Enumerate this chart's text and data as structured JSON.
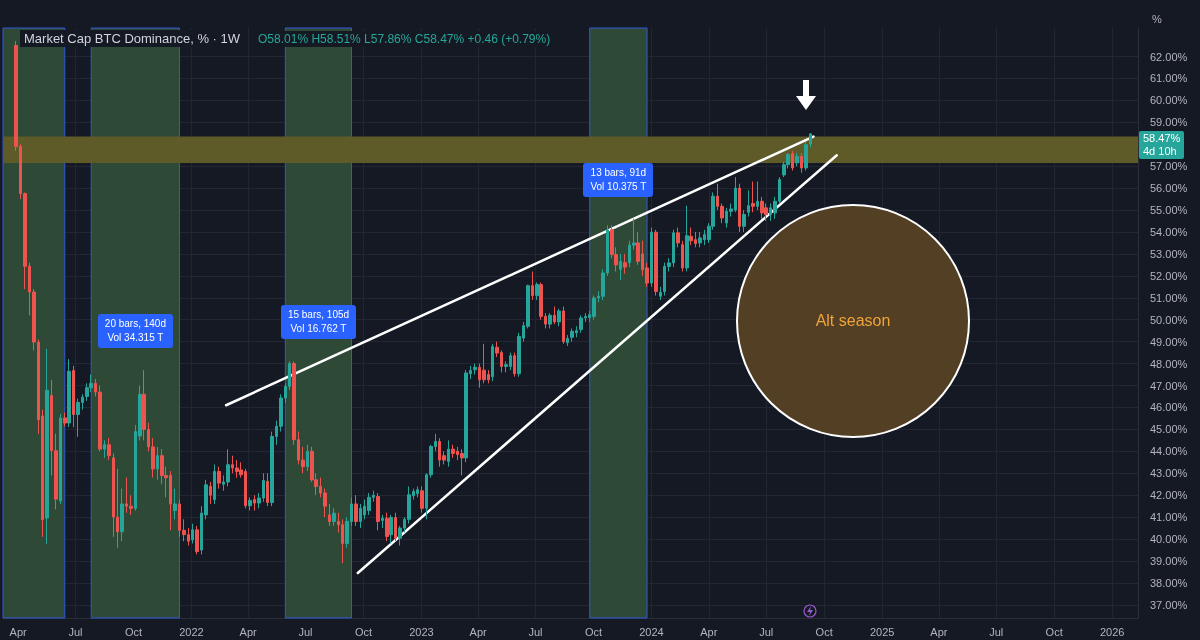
{
  "chart_data": {
    "type": "candlestick",
    "title": "Market Cap BTC Dominance, % · 1W",
    "subtitle": "O58.01% H58.51% L57.86% C58.47% +0.46 (+0.79%)",
    "ylabel": "%",
    "annotations": [
      "Alt season",
      "58.47%",
      "4d 10h"
    ],
    "x": [
      "2021-03-29",
      "2021-04-05",
      "2021-04-12",
      "2021-04-19",
      "2021-04-26",
      "2021-05-03",
      "2021-05-10",
      "2021-05-17",
      "2021-05-24",
      "2021-05-31",
      "2021-06-07",
      "2021-06-14",
      "2021-06-21",
      "2021-06-28",
      "2021-07-05",
      "2021-07-12",
      "2021-07-19",
      "2021-07-26",
      "2021-08-02",
      "2021-08-09",
      "2021-08-16",
      "2021-08-23",
      "2021-08-30",
      "2021-09-06",
      "2021-09-13",
      "2021-09-20",
      "2021-09-27",
      "2021-10-04",
      "2021-10-11",
      "2021-10-18",
      "2021-10-25",
      "2021-11-01",
      "2021-11-08",
      "2021-11-15",
      "2021-11-22",
      "2021-11-29",
      "2021-12-06",
      "2021-12-13",
      "2021-12-20",
      "2021-12-27",
      "2022-01-03",
      "2022-01-10",
      "2022-01-17",
      "2022-01-24",
      "2022-01-31",
      "2022-02-07",
      "2022-02-14",
      "2022-02-21",
      "2022-02-28",
      "2022-03-07",
      "2022-03-14",
      "2022-03-21",
      "2022-03-28",
      "2022-04-04",
      "2022-04-11",
      "2022-04-18",
      "2022-04-25",
      "2022-05-02",
      "2022-05-09",
      "2022-05-16",
      "2022-05-23",
      "2022-05-30",
      "2022-06-06",
      "2022-06-13",
      "2022-06-20",
      "2022-06-27",
      "2022-07-04",
      "2022-07-11",
      "2022-07-18",
      "2022-07-25",
      "2022-08-01",
      "2022-08-08",
      "2022-08-15",
      "2022-08-22",
      "2022-08-29",
      "2022-09-05",
      "2022-09-12",
      "2022-09-19",
      "2022-09-26",
      "2022-10-03",
      "2022-10-10",
      "2022-10-17",
      "2022-10-24",
      "2022-10-31",
      "2022-11-07",
      "2022-11-14",
      "2022-11-21",
      "2022-11-28",
      "2022-12-05",
      "2022-12-12",
      "2022-12-19",
      "2022-12-26",
      "2023-01-02",
      "2023-01-09",
      "2023-01-16",
      "2023-01-23",
      "2023-01-30",
      "2023-02-06",
      "2023-02-13",
      "2023-02-20",
      "2023-02-27",
      "2023-03-06",
      "2023-03-13",
      "2023-03-20",
      "2023-03-27",
      "2023-04-03",
      "2023-04-10",
      "2023-04-17",
      "2023-04-24",
      "2023-05-01",
      "2023-05-08",
      "2023-05-15",
      "2023-05-22",
      "2023-05-29",
      "2023-06-05",
      "2023-06-12",
      "2023-06-19",
      "2023-06-26",
      "2023-07-03",
      "2023-07-10",
      "2023-07-17",
      "2023-07-24",
      "2023-07-31",
      "2023-08-07",
      "2023-08-14",
      "2023-08-21",
      "2023-08-28",
      "2023-09-04",
      "2023-09-11",
      "2023-09-18",
      "2023-09-25",
      "2023-10-02",
      "2023-10-09",
      "2023-10-16",
      "2023-10-23",
      "2023-10-30",
      "2023-11-06",
      "2023-11-13",
      "2023-11-20",
      "2023-11-27",
      "2023-12-04",
      "2023-12-11",
      "2023-12-18",
      "2023-12-25",
      "2024-01-01",
      "2024-01-08",
      "2024-01-15",
      "2024-01-22",
      "2024-01-29",
      "2024-02-05",
      "2024-02-12",
      "2024-02-19",
      "2024-02-26",
      "2024-03-04",
      "2024-03-11",
      "2024-03-18",
      "2024-03-25",
      "2024-04-01",
      "2024-04-08",
      "2024-04-15",
      "2024-04-22",
      "2024-04-29",
      "2024-05-06",
      "2024-05-13",
      "2024-05-20",
      "2024-05-27",
      "2024-06-03",
      "2024-06-10",
      "2024-06-17",
      "2024-06-24",
      "2024-07-01",
      "2024-07-08",
      "2024-07-15",
      "2024-07-22",
      "2024-07-29",
      "2024-08-05",
      "2024-08-12",
      "2024-08-19",
      "2024-08-26",
      "2024-09-02",
      "2024-09-09"
    ],
    "ohlc": [
      [
        62.5,
        62.7,
        57.7,
        57.9
      ],
      [
        57.9,
        58.0,
        55.5,
        55.75
      ],
      [
        55.75,
        55.8,
        51.4,
        52.44
      ],
      [
        52.44,
        52.6,
        50.2,
        51.26
      ],
      [
        51.26,
        51.4,
        48.6,
        48.98
      ],
      [
        48.98,
        49.1,
        44.8,
        45.44
      ],
      [
        45.6,
        45.9,
        40.1,
        40.88
      ],
      [
        40.96,
        48.67,
        39.78,
        46.78
      ],
      [
        46.54,
        47.25,
        42.9,
        44.03
      ],
      [
        44.03,
        44.8,
        41.35,
        41.82
      ],
      [
        41.74,
        45.7,
        41.6,
        45.52
      ],
      [
        45.52,
        45.76,
        45.13,
        45.29
      ],
      [
        45.29,
        48.2,
        45.1,
        47.65
      ],
      [
        47.68,
        47.9,
        45.1,
        45.68
      ],
      [
        45.68,
        46.4,
        44.66,
        46.23
      ],
      [
        46.23,
        46.6,
        45.9,
        46.47
      ],
      [
        46.5,
        47.1,
        46.3,
        46.9
      ],
      [
        46.9,
        47.5,
        46.7,
        47.1
      ],
      [
        47.1,
        47.3,
        46.5,
        46.7
      ],
      [
        46.7,
        47.0,
        44.0,
        44.1
      ],
      [
        44.1,
        44.5,
        43.7,
        44.3
      ],
      [
        44.3,
        44.6,
        43.6,
        43.8
      ],
      [
        43.7,
        43.9,
        40.1,
        41.0
      ],
      [
        41.0,
        43.2,
        39.6,
        40.33
      ],
      [
        40.33,
        42.3,
        39.9,
        41.6
      ],
      [
        41.6,
        42.8,
        41.2,
        41.5
      ],
      [
        41.5,
        42.0,
        41.1,
        41.4
      ],
      [
        41.4,
        45.2,
        41.3,
        44.9
      ],
      [
        44.7,
        47.0,
        44.5,
        46.6
      ],
      [
        46.6,
        47.7,
        44.5,
        45.0
      ],
      [
        45.0,
        45.3,
        44.0,
        44.2
      ],
      [
        44.2,
        44.6,
        42.8,
        43.2
      ],
      [
        43.2,
        44.2,
        42.7,
        43.8
      ],
      [
        43.8,
        44.1,
        42.5,
        42.9
      ],
      [
        42.9,
        43.3,
        41.9,
        42.8
      ],
      [
        42.9,
        43.1,
        40.4,
        41.6
      ],
      [
        41.3,
        42.3,
        40.9,
        41.6
      ],
      [
        41.6,
        41.8,
        40.1,
        40.4
      ],
      [
        40.4,
        40.9,
        39.9,
        40.2
      ],
      [
        40.2,
        40.5,
        39.7,
        39.9
      ],
      [
        39.97,
        40.7,
        39.8,
        40.42
      ],
      [
        40.42,
        40.6,
        39.3,
        39.43
      ],
      [
        39.5,
        41.5,
        39.3,
        41.18
      ],
      [
        41.1,
        42.7,
        40.9,
        42.47
      ],
      [
        42.4,
        42.6,
        41.6,
        42.0
      ],
      [
        41.8,
        43.4,
        41.6,
        43.08
      ],
      [
        43.08,
        43.3,
        42.3,
        42.55
      ],
      [
        42.5,
        42.9,
        42.2,
        42.6
      ],
      [
        42.6,
        44.1,
        42.4,
        43.39
      ],
      [
        43.39,
        43.8,
        43.0,
        43.24
      ],
      [
        43.24,
        43.6,
        42.8,
        43.08
      ],
      [
        43.15,
        43.5,
        42.8,
        42.93
      ],
      [
        43.08,
        43.2,
        41.4,
        41.52
      ],
      [
        41.52,
        41.9,
        41.3,
        41.76
      ],
      [
        41.8,
        42.0,
        41.3,
        41.64
      ],
      [
        41.64,
        42.1,
        41.4,
        41.87
      ],
      [
        41.87,
        43.0,
        41.7,
        42.67
      ],
      [
        42.63,
        43.0,
        41.5,
        41.67
      ],
      [
        41.67,
        44.9,
        41.5,
        44.68
      ],
      [
        44.68,
        45.4,
        44.3,
        45.14
      ],
      [
        45.14,
        46.6,
        44.9,
        46.43
      ],
      [
        46.43,
        47.1,
        46.2,
        46.96
      ],
      [
        46.96,
        48.1,
        46.8,
        48.0
      ],
      [
        48.0,
        48.1,
        44.3,
        44.53
      ],
      [
        44.53,
        44.9,
        43.4,
        43.6
      ],
      [
        43.6,
        44.2,
        43.0,
        43.3
      ],
      [
        43.3,
        44.3,
        43.1,
        44.0
      ],
      [
        44.0,
        44.2,
        42.6,
        42.7
      ],
      [
        42.7,
        43.0,
        42.0,
        42.4
      ],
      [
        42.4,
        42.8,
        41.9,
        42.1
      ],
      [
        42.1,
        42.3,
        41.0,
        41.5
      ],
      [
        41.1,
        41.6,
        40.6,
        40.8
      ],
      [
        40.8,
        41.4,
        40.6,
        41.18
      ],
      [
        40.8,
        41.2,
        40.3,
        40.65
      ],
      [
        40.65,
        40.9,
        38.9,
        39.8
      ],
      [
        39.8,
        41.0,
        39.6,
        40.8
      ],
      [
        40.8,
        41.9,
        40.6,
        41.6
      ],
      [
        41.6,
        42.0,
        40.6,
        40.8
      ],
      [
        40.8,
        41.6,
        40.5,
        41.4
      ],
      [
        41.1,
        41.8,
        40.9,
        41.5
      ],
      [
        41.3,
        42.1,
        41.1,
        41.9
      ],
      [
        41.9,
        42.2,
        41.7,
        42.0
      ],
      [
        41.94,
        42.1,
        40.4,
        40.8
      ],
      [
        40.85,
        41.1,
        40.5,
        40.95
      ],
      [
        40.95,
        41.2,
        39.9,
        40.12
      ],
      [
        40.2,
        41.1,
        39.8,
        40.98
      ],
      [
        40.98,
        41.2,
        39.9,
        40.04
      ],
      [
        40.04,
        40.6,
        39.7,
        40.5
      ],
      [
        40.5,
        41.0,
        40.3,
        40.9
      ],
      [
        40.9,
        42.4,
        40.7,
        42.02
      ],
      [
        41.97,
        42.3,
        41.8,
        42.17
      ],
      [
        42.07,
        42.4,
        41.9,
        42.25
      ],
      [
        42.2,
        42.4,
        41.2,
        41.4
      ],
      [
        41.4,
        43.0,
        40.9,
        42.93
      ],
      [
        42.93,
        44.3,
        42.8,
        44.22
      ],
      [
        44.22,
        44.8,
        44.0,
        44.45
      ],
      [
        44.45,
        44.6,
        43.3,
        43.6
      ],
      [
        43.8,
        44.0,
        43.4,
        43.6
      ],
      [
        43.54,
        44.5,
        43.3,
        44.1
      ],
      [
        44.1,
        44.3,
        43.7,
        43.9
      ],
      [
        44.0,
        44.2,
        43.6,
        43.85
      ],
      [
        43.9,
        44.1,
        42.9,
        43.7
      ],
      [
        43.7,
        47.7,
        43.5,
        47.57
      ],
      [
        47.54,
        47.9,
        47.3,
        47.69
      ],
      [
        47.72,
        48.0,
        47.5,
        47.83
      ],
      [
        47.83,
        48.0,
        46.9,
        47.26
      ],
      [
        47.7,
        48.9,
        47.1,
        47.26
      ],
      [
        47.5,
        47.7,
        47.1,
        47.26
      ],
      [
        47.4,
        48.9,
        47.2,
        48.78
      ],
      [
        48.74,
        49.0,
        48.3,
        48.48
      ],
      [
        48.5,
        48.6,
        47.6,
        47.87
      ],
      [
        47.87,
        48.1,
        47.6,
        47.95
      ],
      [
        47.87,
        48.5,
        47.7,
        48.36
      ],
      [
        48.36,
        48.5,
        47.4,
        47.54
      ],
      [
        47.54,
        49.4,
        47.4,
        49.24
      ],
      [
        49.16,
        49.9,
        49.0,
        49.73
      ],
      [
        49.7,
        51.6,
        49.6,
        51.55
      ],
      [
        51.55,
        52.2,
        50.9,
        51.1
      ],
      [
        51.1,
        51.7,
        50.9,
        51.6
      ],
      [
        51.6,
        51.7,
        50.0,
        50.15
      ],
      [
        50.15,
        50.3,
        49.6,
        49.8
      ],
      [
        49.8,
        50.3,
        49.6,
        50.2
      ],
      [
        50.2,
        50.6,
        49.8,
        49.9
      ],
      [
        49.9,
        50.5,
        49.7,
        50.4
      ],
      [
        50.4,
        50.6,
        48.9,
        49.0
      ],
      [
        48.95,
        49.3,
        48.8,
        49.15
      ],
      [
        49.2,
        49.6,
        49.0,
        49.47
      ],
      [
        49.4,
        49.7,
        49.2,
        49.5
      ],
      [
        49.55,
        50.2,
        49.4,
        50.08
      ],
      [
        50.08,
        50.3,
        49.9,
        50.15
      ],
      [
        50.1,
        50.4,
        49.9,
        50.23
      ],
      [
        50.15,
        51.1,
        50.0,
        50.99
      ],
      [
        50.99,
        51.3,
        50.8,
        51.07
      ],
      [
        51.07,
        52.3,
        50.9,
        52.13
      ],
      [
        52.13,
        54.3,
        52.0,
        54.1
      ],
      [
        54.1,
        54.3,
        52.8,
        52.97
      ],
      [
        52.97,
        53.3,
        52.2,
        52.5
      ],
      [
        52.3,
        53.0,
        51.8,
        52.66
      ],
      [
        52.6,
        53.0,
        52.1,
        52.4
      ],
      [
        52.6,
        53.6,
        52.4,
        53.4
      ],
      [
        53.4,
        54.6,
        53.2,
        53.5
      ],
      [
        53.5,
        54.0,
        52.5,
        52.66
      ],
      [
        53.0,
        53.6,
        52.0,
        52.28
      ],
      [
        52.36,
        52.6,
        51.5,
        51.67
      ],
      [
        51.67,
        54.2,
        51.5,
        53.99
      ],
      [
        53.99,
        54.1,
        51.1,
        51.29
      ],
      [
        51.07,
        51.5,
        50.9,
        51.25
      ],
      [
        51.29,
        52.6,
        51.1,
        52.43
      ],
      [
        52.43,
        52.8,
        52.2,
        52.59
      ],
      [
        52.59,
        54.1,
        52.4,
        53.96
      ],
      [
        53.96,
        54.2,
        53.3,
        53.5
      ],
      [
        53.42,
        53.6,
        52.2,
        52.36
      ],
      [
        52.36,
        55.2,
        52.2,
        53.83
      ],
      [
        53.8,
        54.2,
        53.4,
        53.6
      ],
      [
        53.65,
        54.0,
        53.3,
        53.47
      ],
      [
        53.5,
        54.0,
        53.3,
        53.73
      ],
      [
        53.65,
        54.1,
        53.4,
        53.88
      ],
      [
        53.65,
        54.4,
        53.5,
        54.26
      ],
      [
        54.26,
        55.8,
        54.1,
        55.63
      ],
      [
        55.63,
        56.2,
        55.0,
        55.17
      ],
      [
        55.17,
        55.3,
        54.4,
        54.64
      ],
      [
        54.41,
        55.1,
        54.2,
        54.94
      ],
      [
        54.94,
        55.3,
        54.7,
        55.05
      ],
      [
        55.0,
        56.5,
        54.9,
        56.0
      ],
      [
        56.0,
        56.2,
        54.0,
        54.26
      ],
      [
        54.26,
        55.0,
        54.0,
        54.8
      ],
      [
        54.9,
        55.9,
        54.7,
        55.2
      ],
      [
        55.3,
        56.3,
        54.9,
        55.17
      ],
      [
        55.17,
        56.3,
        55.0,
        55.4
      ],
      [
        55.4,
        55.6,
        54.6,
        54.87
      ],
      [
        55.1,
        55.3,
        54.5,
        54.79
      ],
      [
        54.79,
        55.3,
        54.5,
        55.1
      ],
      [
        54.87,
        55.6,
        54.6,
        55.4
      ],
      [
        55.4,
        56.5,
        55.3,
        56.39
      ],
      [
        56.6,
        57.2,
        56.5,
        57.07
      ],
      [
        57.07,
        57.6,
        56.9,
        57.53
      ],
      [
        57.57,
        57.7,
        56.8,
        56.92
      ],
      [
        57.15,
        57.6,
        57.0,
        57.45
      ],
      [
        57.45,
        57.6,
        56.7,
        56.92
      ],
      [
        56.92,
        58.1,
        56.8,
        57.98
      ],
      [
        58.01,
        58.51,
        57.86,
        58.47
      ]
    ],
    "colors": [
      "#ef5350",
      "#ef5350",
      "#ef5350",
      "#ef5350",
      "#ef5350",
      "#ef5350",
      "#ef5350",
      "#26a69a",
      "#ef5350",
      "#ef5350",
      "#26a69a",
      "#ef5350",
      "#26a69a",
      "#ef5350",
      "#26a69a",
      "#26a69a",
      "#26a69a",
      "#26a69a",
      "#ef5350",
      "#ef5350",
      "#26a69a",
      "#ef5350",
      "#ef5350",
      "#ef5350",
      "#26a69a",
      "#ef5350",
      "#ef5350",
      "#26a69a",
      "#26a69a",
      "#ef5350",
      "#ef5350",
      "#ef5350",
      "#26a69a",
      "#ef5350",
      "#ef5350",
      "#ef5350",
      "#26a69a",
      "#ef5350",
      "#ef5350",
      "#ef5350",
      "#26a69a",
      "#ef5350",
      "#26a69a",
      "#26a69a",
      "#ef5350",
      "#26a69a",
      "#ef5350",
      "#26a69a",
      "#26a69a",
      "#ef5350",
      "#ef5350",
      "#ef5350",
      "#ef5350",
      "#26a69a",
      "#ef5350",
      "#26a69a",
      "#26a69a",
      "#ef5350",
      "#26a69a",
      "#26a69a",
      "#26a69a",
      "#26a69a",
      "#26a69a",
      "#ef5350",
      "#ef5350",
      "#ef5350",
      "#26a69a",
      "#ef5350",
      "#ef5350",
      "#ef5350",
      "#ef5350",
      "#ef5350",
      "#26a69a",
      "#ef5350",
      "#ef5350",
      "#26a69a",
      "#26a69a",
      "#ef5350",
      "#26a69a",
      "#26a69a",
      "#26a69a",
      "#26a69a",
      "#ef5350",
      "#26a69a",
      "#ef5350",
      "#26a69a",
      "#ef5350",
      "#26a69a",
      "#26a69a",
      "#26a69a",
      "#26a69a",
      "#26a69a",
      "#ef5350",
      "#26a69a",
      "#26a69a",
      "#26a69a",
      "#ef5350",
      "#ef5350",
      "#26a69a",
      "#ef5350",
      "#ef5350",
      "#ef5350",
      "#26a69a",
      "#26a69a",
      "#26a69a",
      "#ef5350",
      "#ef5350",
      "#ef5350",
      "#26a69a",
      "#ef5350",
      "#ef5350",
      "#26a69a",
      "#26a69a",
      "#ef5350",
      "#26a69a",
      "#26a69a",
      "#26a69a",
      "#ef5350",
      "#26a69a",
      "#ef5350",
      "#ef5350",
      "#26a69a",
      "#ef5350",
      "#26a69a",
      "#ef5350",
      "#26a69a",
      "#26a69a",
      "#26a69a",
      "#26a69a",
      "#26a69a",
      "#26a69a",
      "#26a69a",
      "#26a69a",
      "#26a69a",
      "#26a69a",
      "#ef5350",
      "#ef5350",
      "#26a69a",
      "#ef5350",
      "#26a69a",
      "#26a69a",
      "#ef5350",
      "#ef5350",
      "#ef5350",
      "#26a69a",
      "#ef5350",
      "#26a69a",
      "#26a69a",
      "#26a69a",
      "#26a69a",
      "#ef5350",
      "#ef5350",
      "#26a69a",
      "#ef5350",
      "#ef5350",
      "#26a69a",
      "#26a69a",
      "#26a69a",
      "#26a69a",
      "#ef5350",
      "#ef5350",
      "#26a69a",
      "#26a69a",
      "#26a69a",
      "#ef5350",
      "#26a69a",
      "#26a69a",
      "#ef5350",
      "#26a69a",
      "#ef5350",
      "#ef5350",
      "#26a69a",
      "#26a69a",
      "#26a69a",
      "#26a69a",
      "#26a69a",
      "#ef5350",
      "#26a69a",
      "#ef5350",
      "#26a69a",
      "#26a69a"
    ],
    "series": [
      {
        "type": "line",
        "color": "#ffffff",
        "x": [
          "2022-02-25",
          "2024-09-14"
        ],
        "values": [
          46.1,
          58.35
        ]
      },
      {
        "type": "line",
        "color": "#ffffff",
        "x": [
          "2022-09-22",
          "2024-10-21"
        ],
        "values": [
          38.45,
          57.5
        ]
      }
    ],
    "xlim": [
      "2021-03-08",
      "2026-02-11"
    ],
    "xticks": [
      {
        "value": "2021-04-01",
        "label": "Apr"
      },
      {
        "value": "2021-07-01",
        "label": "Jul"
      },
      {
        "value": "2021-10-01",
        "label": "Oct"
      },
      {
        "value": "2022-01-01",
        "label": "2022"
      },
      {
        "value": "2022-04-01",
        "label": "Apr"
      },
      {
        "value": "2022-07-01",
        "label": "Jul"
      },
      {
        "value": "2022-10-01",
        "label": "Oct"
      },
      {
        "value": "2023-01-01",
        "label": "2023"
      },
      {
        "value": "2023-04-01",
        "label": "Apr"
      },
      {
        "value": "2023-07-01",
        "label": "Jul"
      },
      {
        "value": "2023-10-01",
        "label": "Oct"
      },
      {
        "value": "2024-01-01",
        "label": "2024"
      },
      {
        "value": "2024-04-01",
        "label": "Apr"
      },
      {
        "value": "2024-07-01",
        "label": "Jul"
      },
      {
        "value": "2024-10-01",
        "label": "Oct"
      },
      {
        "value": "2025-01-01",
        "label": "2025"
      },
      {
        "value": "2025-04-01",
        "label": "Apr"
      },
      {
        "value": "2025-07-01",
        "label": "Jul"
      },
      {
        "value": "2025-10-01",
        "label": "Oct"
      },
      {
        "value": "2026-01-01",
        "label": "2026"
      }
    ],
    "ylim": [
      36.4,
      63.3
    ],
    "yticks": [
      {
        "value": 37,
        "label": "37.00%"
      },
      {
        "value": 38,
        "label": "38.00%"
      },
      {
        "value": 39,
        "label": "39.00%"
      },
      {
        "value": 40,
        "label": "40.00%"
      },
      {
        "value": 41,
        "label": "41.00%"
      },
      {
        "value": 42,
        "label": "42.00%"
      },
      {
        "value": 43,
        "label": "43.00%"
      },
      {
        "value": 44,
        "label": "44.00%"
      },
      {
        "value": 45,
        "label": "45.00%"
      },
      {
        "value": 46,
        "label": "46.00%"
      },
      {
        "value": 47,
        "label": "47.00%"
      },
      {
        "value": 48,
        "label": "48.00%"
      },
      {
        "value": 49,
        "label": "49.00%"
      },
      {
        "value": 50,
        "label": "50.00%"
      },
      {
        "value": 51,
        "label": "51.00%"
      },
      {
        "value": 52,
        "label": "52.00%"
      },
      {
        "value": 53,
        "label": "53.00%"
      },
      {
        "value": 54,
        "label": "54.00%"
      },
      {
        "value": 55,
        "label": "55.00%"
      },
      {
        "value": 56,
        "label": "56.00%"
      },
      {
        "value": 57,
        "label": "57.00%"
      },
      {
        "value": 58,
        "label": null
      },
      {
        "value": 59,
        "label": "59.00%"
      },
      {
        "value": 60,
        "label": "60.00%"
      },
      {
        "value": 61,
        "label": "61.00%"
      },
      {
        "value": 62,
        "label": "62.00%"
      }
    ],
    "grid": true,
    "marker": "none",
    "bands": [
      {
        "axis": "x",
        "from": "2021-03-08",
        "to": "2021-06-14",
        "color": "#2e4a36"
      },
      {
        "axis": "x",
        "from": "2021-07-26",
        "to": "2021-12-13",
        "label": "20 bars, 140d\nVol 34.315 T",
        "color": "#2e4a36"
      },
      {
        "axis": "x",
        "from": "2022-05-30",
        "to": "2022-09-12",
        "label": "15 bars, 105d\nVol 16.762 T",
        "color": "#2e4a36"
      },
      {
        "axis": "x",
        "from": "2023-09-25",
        "to": "2023-12-25",
        "label": "13 bars, 91d\nVol 10.375 T",
        "color": "#2e4a36"
      },
      {
        "axis": "y",
        "from": 57.15,
        "to": 58.35,
        "color": "#5e5b29"
      }
    ]
  }
}
